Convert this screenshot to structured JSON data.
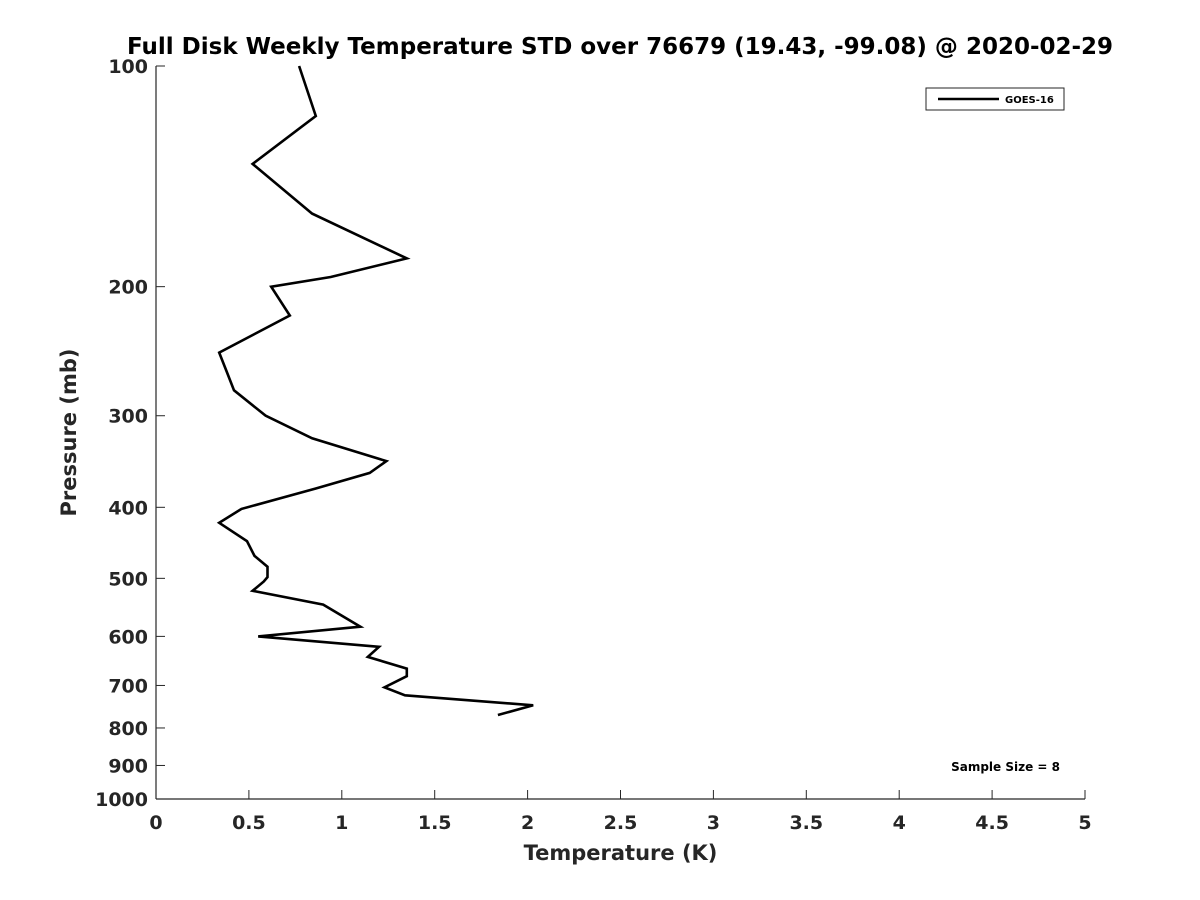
{
  "chart_data": {
    "type": "line",
    "title": "Full Disk Weekly Temperature STD over 76679 (19.43, -99.08) @ 2020-02-29",
    "xlabel": "Temperature (K)",
    "ylabel": "Pressure (mb)",
    "xlim": [
      0,
      5
    ],
    "ylim": [
      100,
      1000
    ],
    "yscale": "log",
    "y_reversed": true,
    "grid": false,
    "xticks": [
      0,
      0.5,
      1,
      1.5,
      2,
      2.5,
      3,
      3.5,
      4,
      4.5,
      5
    ],
    "xtick_labels": [
      "0",
      "0.5",
      "1",
      "1.5",
      "2",
      "2.5",
      "3",
      "3.5",
      "4",
      "4.5",
      "5"
    ],
    "yticks": [
      100,
      200,
      300,
      400,
      500,
      600,
      700,
      800,
      900,
      1000
    ],
    "ytick_labels": [
      "100",
      "200",
      "300",
      "400",
      "500",
      "600",
      "700",
      "800",
      "900",
      "1000"
    ],
    "legend_position": "top-right",
    "series": [
      {
        "name": "GOES-16",
        "color": "#000000",
        "points": [
          {
            "t": 0.77,
            "p": 100
          },
          {
            "t": 0.86,
            "p": 117
          },
          {
            "t": 0.52,
            "p": 136
          },
          {
            "t": 0.84,
            "p": 159
          },
          {
            "t": 1.35,
            "p": 183
          },
          {
            "t": 0.94,
            "p": 194
          },
          {
            "t": 0.62,
            "p": 200
          },
          {
            "t": 0.72,
            "p": 219
          },
          {
            "t": 0.34,
            "p": 246
          },
          {
            "t": 0.38,
            "p": 261
          },
          {
            "t": 0.42,
            "p": 277
          },
          {
            "t": 0.59,
            "p": 300
          },
          {
            "t": 0.84,
            "p": 322
          },
          {
            "t": 1.24,
            "p": 346
          },
          {
            "t": 1.15,
            "p": 359
          },
          {
            "t": 0.86,
            "p": 377
          },
          {
            "t": 0.46,
            "p": 402
          },
          {
            "t": 0.34,
            "p": 420
          },
          {
            "t": 0.49,
            "p": 445
          },
          {
            "t": 0.53,
            "p": 466
          },
          {
            "t": 0.6,
            "p": 482
          },
          {
            "t": 0.6,
            "p": 498
          },
          {
            "t": 0.58,
            "p": 505
          },
          {
            "t": 0.52,
            "p": 520
          },
          {
            "t": 0.9,
            "p": 543
          },
          {
            "t": 1.1,
            "p": 582
          },
          {
            "t": 0.55,
            "p": 600
          },
          {
            "t": 1.2,
            "p": 620
          },
          {
            "t": 1.14,
            "p": 640
          },
          {
            "t": 1.35,
            "p": 664
          },
          {
            "t": 1.35,
            "p": 680
          },
          {
            "t": 1.23,
            "p": 704
          },
          {
            "t": 1.34,
            "p": 722
          },
          {
            "t": 2.03,
            "p": 745
          },
          {
            "t": 1.84,
            "p": 768
          }
        ]
      }
    ],
    "annotations": [
      "Sample Size = 8"
    ]
  }
}
